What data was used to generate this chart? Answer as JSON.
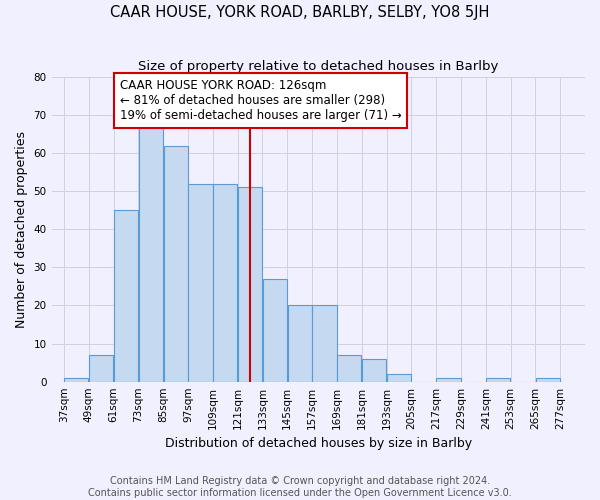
{
  "title": "CAAR HOUSE, YORK ROAD, BARLBY, SELBY, YO8 5JH",
  "subtitle": "Size of property relative to detached houses in Barlby",
  "xlabel": "Distribution of detached houses by size in Barlby",
  "ylabel": "Number of detached properties",
  "bar_left_edges": [
    37,
    49,
    61,
    73,
    85,
    97,
    109,
    121,
    133,
    145,
    157,
    169,
    181,
    193,
    205,
    217,
    229,
    241,
    253,
    265
  ],
  "bar_heights": [
    1,
    7,
    45,
    67,
    62,
    52,
    52,
    51,
    27,
    20,
    20,
    7,
    6,
    2,
    0,
    1,
    0,
    1,
    0,
    1
  ],
  "bin_width": 12,
  "bar_color": "#c5d9f0",
  "bar_edge_color": "#5b9bd5",
  "reference_line_x": 127,
  "reference_line_color": "#cc0000",
  "annotation_text": "CAAR HOUSE YORK ROAD: 126sqm\n← 81% of detached houses are smaller (298)\n19% of semi-detached houses are larger (71) →",
  "annotation_box_color": "#cc0000",
  "annotation_bg_color": "#ffffff",
  "ylim": [
    0,
    80
  ],
  "yticks": [
    0,
    10,
    20,
    30,
    40,
    50,
    60,
    70,
    80
  ],
  "x_tick_labels": [
    "37sqm",
    "49sqm",
    "61sqm",
    "73sqm",
    "85sqm",
    "97sqm",
    "109sqm",
    "121sqm",
    "133sqm",
    "145sqm",
    "157sqm",
    "169sqm",
    "181sqm",
    "193sqm",
    "205sqm",
    "217sqm",
    "229sqm",
    "241sqm",
    "253sqm",
    "265sqm",
    "277sqm"
  ],
  "x_tick_positions": [
    37,
    49,
    61,
    73,
    85,
    97,
    109,
    121,
    133,
    145,
    157,
    169,
    181,
    193,
    205,
    217,
    229,
    241,
    253,
    265,
    277
  ],
  "grid_color": "#d0d0e0",
  "background_color": "#f0f0ff",
  "footer_text": "Contains HM Land Registry data © Crown copyright and database right 2024.\nContains public sector information licensed under the Open Government Licence v3.0.",
  "title_fontsize": 10.5,
  "subtitle_fontsize": 9.5,
  "axis_label_fontsize": 9,
  "tick_fontsize": 7.5,
  "annotation_fontsize": 8.5,
  "footer_fontsize": 7,
  "xlim_left": 31,
  "xlim_right": 289
}
